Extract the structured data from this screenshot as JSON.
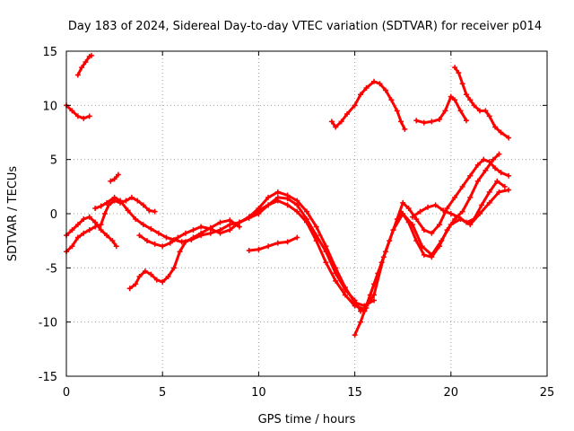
{
  "chart_data": {
    "type": "scatter",
    "title": "Day 183 of 2024, Sidereal Day-to-day VTEC variation (SDTVAR) for receiver p014",
    "xlabel": "GPS time / hours",
    "ylabel": "SDTVAR / TECUs",
    "xlim": [
      0,
      25
    ],
    "ylim": [
      -15,
      15
    ],
    "xticks": [
      "0",
      "5",
      "10",
      "15",
      "20",
      "25"
    ],
    "yticks": [
      "-15",
      "-10",
      "-5",
      "0",
      "5",
      "10",
      "15"
    ],
    "grid": true,
    "color": "#ff0000",
    "series": [
      {
        "values": [
          [
            0.0,
            10.0
          ],
          [
            0.3,
            9.5
          ],
          [
            0.6,
            9.0
          ],
          [
            0.9,
            8.8
          ],
          [
            1.2,
            9.0
          ]
        ]
      },
      {
        "values": [
          [
            0.6,
            12.8
          ],
          [
            0.8,
            13.5
          ],
          [
            1.0,
            14.0
          ],
          [
            1.2,
            14.5
          ],
          [
            1.3,
            14.6
          ]
        ]
      },
      {
        "values": [
          [
            2.3,
            3.0
          ],
          [
            2.5,
            3.2
          ],
          [
            2.7,
            3.6
          ]
        ]
      },
      {
        "values": [
          [
            0.0,
            -3.5
          ],
          [
            0.3,
            -3.0
          ],
          [
            0.6,
            -2.2
          ],
          [
            0.9,
            -1.8
          ],
          [
            1.2,
            -1.5
          ],
          [
            1.5,
            -1.2
          ],
          [
            1.8,
            -1.0
          ],
          [
            2.0,
            0.0
          ],
          [
            2.2,
            0.8
          ],
          [
            2.5,
            1.2
          ],
          [
            2.8,
            1.0
          ],
          [
            3.1,
            1.2
          ],
          [
            3.4,
            1.5
          ],
          [
            3.7,
            1.2
          ],
          [
            4.0,
            0.8
          ],
          [
            4.3,
            0.3
          ],
          [
            4.6,
            0.2
          ]
        ]
      },
      {
        "values": [
          [
            0.0,
            -2.0
          ],
          [
            0.3,
            -1.5
          ],
          [
            0.6,
            -1.0
          ],
          [
            0.9,
            -0.5
          ],
          [
            1.2,
            -0.3
          ],
          [
            1.5,
            -0.8
          ],
          [
            1.8,
            -1.5
          ],
          [
            2.1,
            -2.0
          ],
          [
            2.4,
            -2.5
          ],
          [
            2.6,
            -3.0
          ]
        ]
      },
      {
        "values": [
          [
            1.5,
            0.5
          ],
          [
            1.8,
            0.7
          ],
          [
            2.1,
            1.0
          ],
          [
            2.5,
            1.5
          ],
          [
            2.8,
            1.2
          ],
          [
            3.2,
            0.3
          ],
          [
            3.6,
            -0.5
          ],
          [
            4.0,
            -1.0
          ],
          [
            4.4,
            -1.4
          ],
          [
            4.8,
            -1.8
          ],
          [
            5.2,
            -2.2
          ],
          [
            5.6,
            -2.4
          ],
          [
            6.0,
            -2.6
          ],
          [
            6.5,
            -2.4
          ],
          [
            7.0,
            -2.0
          ],
          [
            7.5,
            -1.8
          ],
          [
            8.0,
            -1.5
          ],
          [
            8.5,
            -1.0
          ],
          [
            9.0,
            -0.8
          ],
          [
            9.5,
            -0.3
          ],
          [
            10.0,
            0.3
          ],
          [
            10.5,
            0.8
          ],
          [
            11.0,
            1.2
          ],
          [
            11.5,
            0.8
          ],
          [
            12.0,
            0.2
          ],
          [
            12.5,
            -0.8
          ],
          [
            13.0,
            -2.5
          ],
          [
            13.5,
            -4.5
          ],
          [
            14.0,
            -6.2
          ],
          [
            14.5,
            -7.5
          ],
          [
            15.0,
            -8.5
          ],
          [
            15.5,
            -8.8
          ],
          [
            16.0,
            -7.5
          ],
          [
            16.5,
            -4.0
          ],
          [
            17.0,
            -1.5
          ],
          [
            17.5,
            0.0
          ],
          [
            18.0,
            -1.0
          ],
          [
            18.5,
            -3.0
          ],
          [
            19.0,
            -3.8
          ],
          [
            19.5,
            -2.5
          ],
          [
            20.0,
            -1.0
          ],
          [
            20.5,
            -0.5
          ],
          [
            21.0,
            -1.0
          ],
          [
            21.5,
            0.0
          ],
          [
            22.0,
            1.0
          ],
          [
            22.5,
            2.0
          ],
          [
            23.0,
            2.2
          ]
        ]
      },
      {
        "values": [
          [
            3.3,
            -6.9
          ],
          [
            3.6,
            -6.5
          ],
          [
            3.8,
            -5.8
          ],
          [
            4.1,
            -5.3
          ],
          [
            4.4,
            -5.6
          ],
          [
            4.7,
            -6.1
          ],
          [
            5.0,
            -6.3
          ],
          [
            5.3,
            -5.8
          ],
          [
            5.6,
            -5.0
          ],
          [
            5.9,
            -3.5
          ],
          [
            6.2,
            -2.6
          ],
          [
            6.6,
            -2.2
          ],
          [
            7.0,
            -1.8
          ],
          [
            7.5,
            -1.3
          ],
          [
            8.0,
            -0.8
          ],
          [
            8.5,
            -0.6
          ],
          [
            9.0,
            -1.2
          ]
        ]
      },
      {
        "values": [
          [
            3.8,
            -2.0
          ],
          [
            4.2,
            -2.5
          ],
          [
            4.6,
            -2.8
          ],
          [
            5.0,
            -3.0
          ],
          [
            5.4,
            -2.7
          ],
          [
            5.8,
            -2.2
          ],
          [
            6.2,
            -1.8
          ],
          [
            6.6,
            -1.5
          ],
          [
            7.0,
            -1.2
          ],
          [
            7.5,
            -1.4
          ],
          [
            8.0,
            -1.8
          ],
          [
            8.5,
            -1.5
          ],
          [
            9.0,
            -0.8
          ],
          [
            9.5,
            -0.4
          ],
          [
            10.0,
            0.0
          ],
          [
            10.5,
            0.8
          ],
          [
            11.0,
            1.5
          ],
          [
            11.5,
            1.4
          ],
          [
            12.0,
            0.8
          ],
          [
            12.5,
            -0.5
          ],
          [
            13.0,
            -2.0
          ],
          [
            13.5,
            -3.5
          ],
          [
            14.0,
            -5.5
          ],
          [
            14.5,
            -7.0
          ],
          [
            15.0,
            -8.0
          ],
          [
            15.3,
            -9.0
          ],
          [
            15.6,
            -8.7
          ]
        ]
      },
      {
        "values": [
          [
            9.5,
            -3.4
          ],
          [
            10.0,
            -3.3
          ],
          [
            10.5,
            -3.0
          ],
          [
            11.0,
            -2.7
          ],
          [
            11.5,
            -2.6
          ],
          [
            12.0,
            -2.2
          ]
        ]
      },
      {
        "values": [
          [
            9.5,
            -0.3
          ],
          [
            10.0,
            0.5
          ],
          [
            10.5,
            1.5
          ],
          [
            11.0,
            2.0
          ],
          [
            11.5,
            1.7
          ],
          [
            12.0,
            1.2
          ],
          [
            12.5,
            0.2
          ],
          [
            13.0,
            -1.2
          ],
          [
            13.5,
            -3.0
          ],
          [
            14.0,
            -5.0
          ],
          [
            14.5,
            -6.8
          ],
          [
            15.0,
            -8.2
          ],
          [
            15.5,
            -8.5
          ],
          [
            16.0,
            -8.0
          ]
        ]
      },
      {
        "values": [
          [
            15.0,
            -11.2
          ],
          [
            15.3,
            -10.0
          ],
          [
            15.6,
            -8.5
          ],
          [
            16.0,
            -6.5
          ],
          [
            16.4,
            -4.5
          ],
          [
            16.8,
            -2.5
          ],
          [
            17.2,
            -0.5
          ],
          [
            17.5,
            1.0
          ],
          [
            17.8,
            0.5
          ],
          [
            18.2,
            -0.5
          ],
          [
            18.6,
            -1.5
          ],
          [
            19.0,
            -1.8
          ],
          [
            19.4,
            -1.0
          ],
          [
            19.8,
            0.5
          ],
          [
            20.2,
            1.5
          ],
          [
            20.6,
            2.5
          ],
          [
            21.0,
            3.5
          ],
          [
            21.4,
            4.5
          ],
          [
            21.7,
            5.0
          ],
          [
            22.0,
            4.8
          ],
          [
            22.3,
            4.2
          ],
          [
            22.6,
            3.8
          ],
          [
            23.0,
            3.5
          ]
        ]
      },
      {
        "values": [
          [
            15.5,
            -9.0
          ],
          [
            15.8,
            -7.5
          ],
          [
            16.2,
            -5.5
          ],
          [
            16.6,
            -3.5
          ],
          [
            17.0,
            -1.5
          ],
          [
            17.4,
            0.2
          ],
          [
            17.8,
            -0.8
          ],
          [
            18.2,
            -2.5
          ],
          [
            18.6,
            -3.8
          ],
          [
            19.0,
            -4.0
          ],
          [
            19.4,
            -3.0
          ],
          [
            19.8,
            -1.5
          ],
          [
            20.2,
            -0.5
          ],
          [
            20.6,
            0.2
          ],
          [
            21.0,
            1.5
          ],
          [
            21.4,
            3.0
          ],
          [
            21.8,
            4.0
          ],
          [
            22.2,
            5.0
          ],
          [
            22.5,
            5.5
          ]
        ]
      },
      {
        "values": [
          [
            13.8,
            8.5
          ],
          [
            14.0,
            8.0
          ],
          [
            14.3,
            8.5
          ],
          [
            14.6,
            9.2
          ],
          [
            15.0,
            10.0
          ],
          [
            15.3,
            11.0
          ],
          [
            15.6,
            11.6
          ],
          [
            16.0,
            12.2
          ],
          [
            16.3,
            12.0
          ],
          [
            16.6,
            11.4
          ],
          [
            16.9,
            10.5
          ],
          [
            17.2,
            9.5
          ],
          [
            17.4,
            8.5
          ],
          [
            17.6,
            7.8
          ]
        ]
      },
      {
        "values": [
          [
            18.2,
            8.6
          ],
          [
            18.6,
            8.4
          ],
          [
            19.0,
            8.5
          ],
          [
            19.4,
            8.7
          ],
          [
            19.7,
            9.5
          ],
          [
            20.0,
            10.8
          ],
          [
            20.2,
            10.5
          ],
          [
            20.5,
            9.5
          ],
          [
            20.8,
            8.6
          ]
        ]
      },
      {
        "values": [
          [
            20.2,
            13.5
          ],
          [
            20.4,
            13.0
          ],
          [
            20.6,
            12.0
          ],
          [
            20.8,
            11.0
          ],
          [
            21.0,
            10.5
          ],
          [
            21.2,
            10.0
          ],
          [
            21.5,
            9.5
          ],
          [
            21.8,
            9.5
          ],
          [
            22.0,
            9.0
          ],
          [
            22.3,
            8.0
          ],
          [
            22.6,
            7.5
          ],
          [
            23.0,
            7.0
          ]
        ]
      },
      {
        "values": [
          [
            18.0,
            -0.3
          ],
          [
            18.4,
            0.2
          ],
          [
            18.8,
            0.6
          ],
          [
            19.2,
            0.8
          ],
          [
            19.6,
            0.3
          ],
          [
            20.0,
            0.0
          ],
          [
            20.4,
            -0.3
          ],
          [
            20.8,
            -0.8
          ],
          [
            21.2,
            -0.5
          ],
          [
            21.6,
            0.8
          ],
          [
            22.0,
            2.0
          ],
          [
            22.4,
            3.0
          ],
          [
            22.8,
            2.5
          ]
        ]
      }
    ]
  }
}
